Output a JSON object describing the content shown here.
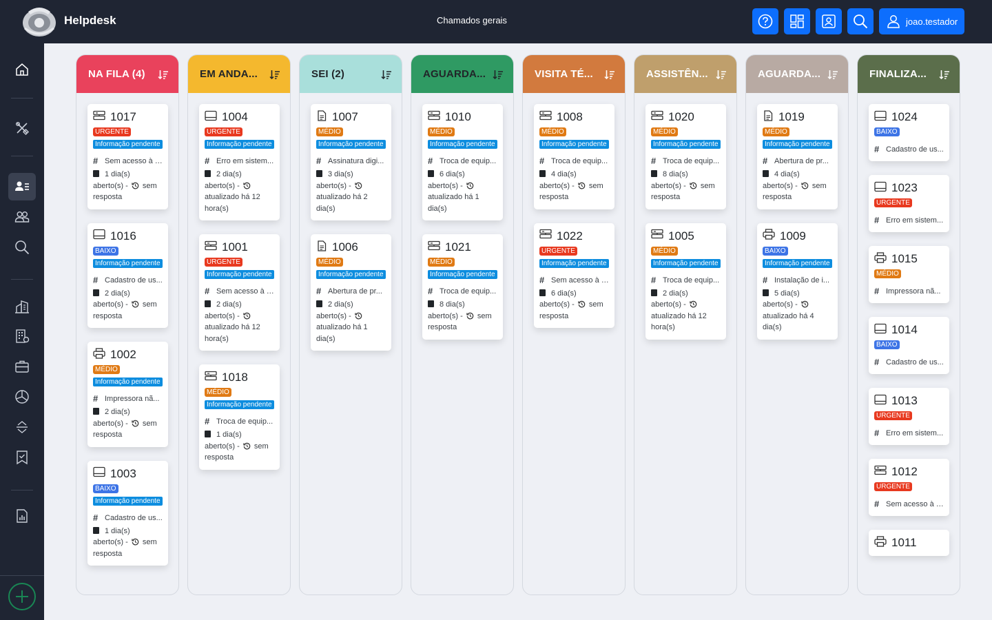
{
  "app": {
    "title": "Helpdesk",
    "page_title": "Chamados gerais",
    "user": "joao.testador"
  },
  "sidebar": {
    "items": [
      "home",
      "tools",
      "users-card",
      "people",
      "search",
      "building",
      "building-grid",
      "briefcase",
      "pie",
      "expand",
      "checklist",
      "report"
    ],
    "add_label": "+"
  },
  "columns": [
    {
      "title": "NA FILA (4)",
      "color": "#e9425c",
      "text_color": "#ffffff",
      "cards": [
        {
          "id": "1017",
          "icon": "server",
          "priority": "URGENTE",
          "status": "Informação pendente",
          "subject": "Sem acesso à r...",
          "l1": "1 dia(s)",
          "l2": "aberto(s) -",
          "l3": "sem",
          "l4": "resposta"
        },
        {
          "id": "1016",
          "icon": "monitor",
          "priority": "BAIXO",
          "status": "Informação pendente",
          "subject": "Cadastro de us...",
          "l1": "2 dia(s)",
          "l2": "aberto(s) -",
          "l3": "sem",
          "l4": "resposta"
        },
        {
          "id": "1002",
          "icon": "printer",
          "priority": "MÉDIO",
          "status": "Informação pendente",
          "subject": "Impressora nã...",
          "l1": "2 dia(s)",
          "l2": "aberto(s) -",
          "l3": "sem",
          "l4": "resposta"
        },
        {
          "id": "1003",
          "icon": "monitor",
          "priority": "BAIXO",
          "status": "Informação pendente",
          "subject": "Cadastro de us...",
          "l1": "1 dia(s)",
          "l2": "aberto(s) -",
          "l3": "sem",
          "l4": "resposta"
        }
      ]
    },
    {
      "title": "EM ANDA...",
      "color": "#f4b82e",
      "text_color": "#212529",
      "cards": [
        {
          "id": "1004",
          "icon": "monitor",
          "priority": "URGENTE",
          "status": "Informação pendente",
          "subject": "Erro em sistem...",
          "l1": "2 dia(s)",
          "l2": "aberto(s) -",
          "l3": "",
          "l4": "atualizado há 12",
          "l5": "hora(s)"
        },
        {
          "id": "1001",
          "icon": "server",
          "priority": "URGENTE",
          "status": "Informação pendente",
          "subject": "Sem acesso à r...",
          "l1": "2 dia(s)",
          "l2": "aberto(s) -",
          "l3": "",
          "l4": "atualizado há 12",
          "l5": "hora(s)"
        },
        {
          "id": "1018",
          "icon": "server",
          "priority": "MÉDIO",
          "status": "Informação pendente",
          "subject": "Troca de equip...",
          "l1": "1 dia(s)",
          "l2": "aberto(s) -",
          "l3": "sem",
          "l4": "resposta"
        }
      ]
    },
    {
      "title": "SEI (2)",
      "color": "#a9dfdb",
      "text_color": "#212529",
      "cards": [
        {
          "id": "1007",
          "icon": "document",
          "priority": "MÉDIO",
          "status": "Informação pendente",
          "subject": "Assinatura digi...",
          "l1": "3 dia(s)",
          "l2": "aberto(s) -",
          "l3": "",
          "l4": "atualizado há 2",
          "l5": "dia(s)"
        },
        {
          "id": "1006",
          "icon": "document",
          "priority": "MÉDIO",
          "status": "Informação pendente",
          "subject": "Abertura de pr...",
          "l1": "2 dia(s)",
          "l2": "aberto(s) -",
          "l3": "",
          "l4": "atualizado há 1",
          "l5": "dia(s)"
        }
      ]
    },
    {
      "title": "AGUARDA...",
      "color": "#2f9a63",
      "text_color": "#212529",
      "cards": [
        {
          "id": "1010",
          "icon": "server",
          "priority": "MÉDIO",
          "status": "Informação pendente",
          "subject": "Troca de equip...",
          "l1": "6 dia(s)",
          "l2": "aberto(s) -",
          "l3": "",
          "l4": "atualizado há 1",
          "l5": "dia(s)"
        },
        {
          "id": "1021",
          "icon": "server",
          "priority": "MÉDIO",
          "status": "Informação pendente",
          "subject": "Troca de equip...",
          "l1": "8 dia(s)",
          "l2": "aberto(s) -",
          "l3": "sem",
          "l4": "resposta"
        }
      ]
    },
    {
      "title": "VISITA TÉ...",
      "color": "#d27a3e",
      "text_color": "#ffffff",
      "cards": [
        {
          "id": "1008",
          "icon": "server",
          "priority": "MÉDIO",
          "status": "Informação pendente",
          "subject": "Troca de equip...",
          "l1": "4 dia(s)",
          "l2": "aberto(s) -",
          "l3": "sem",
          "l4": "resposta"
        },
        {
          "id": "1022",
          "icon": "server",
          "priority": "URGENTE",
          "status": "Informação pendente",
          "subject": "Sem acesso à r...",
          "l1": "6 dia(s)",
          "l2": "aberto(s) -",
          "l3": "sem",
          "l4": "resposta"
        }
      ]
    },
    {
      "title": "ASSISTÊN...",
      "color": "#bf9f6c",
      "text_color": "#ffffff",
      "cards": [
        {
          "id": "1020",
          "icon": "server",
          "priority": "MÉDIO",
          "status": "Informação pendente",
          "subject": "Troca de equip...",
          "l1": "8 dia(s)",
          "l2": "aberto(s) -",
          "l3": "sem",
          "l4": "resposta"
        },
        {
          "id": "1005",
          "icon": "server",
          "priority": "MÉDIO",
          "status": "Informação pendente",
          "subject": "Troca de equip...",
          "l1": "2 dia(s)",
          "l2": "aberto(s) -",
          "l3": "",
          "l4": "atualizado há 12",
          "l5": "hora(s)"
        }
      ]
    },
    {
      "title": "AGUARDA...",
      "color": "#b8aaa3",
      "text_color": "#ffffff",
      "cards": [
        {
          "id": "1019",
          "icon": "document",
          "priority": "MÉDIO",
          "status": "Informação pendente",
          "subject": "Abertura de pr...",
          "l1": "4 dia(s)",
          "l2": "aberto(s) -",
          "l3": "sem",
          "l4": "resposta"
        },
        {
          "id": "1009",
          "icon": "printer",
          "priority": "BAIXO",
          "status": "Informação pendente",
          "subject": "Instalação de i...",
          "l1": "5 dia(s)",
          "l2": "aberto(s) -",
          "l3": "",
          "l4": "atualizado há 4",
          "l5": "dia(s)"
        }
      ]
    },
    {
      "title": "FINALIZA...",
      "color": "#5b6e4b",
      "text_color": "#ffffff",
      "cards": [
        {
          "id": "1024",
          "icon": "monitor",
          "priority": "BAIXO",
          "subject": "Cadastro de us..."
        },
        {
          "id": "1023",
          "icon": "monitor",
          "priority": "URGENTE",
          "subject": "Erro em sistem..."
        },
        {
          "id": "1015",
          "icon": "printer",
          "priority": "MÉDIO",
          "subject": "Impressora nã..."
        },
        {
          "id": "1014",
          "icon": "monitor",
          "priority": "BAIXO",
          "subject": "Cadastro de us..."
        },
        {
          "id": "1013",
          "icon": "monitor",
          "priority": "URGENTE",
          "subject": "Erro em sistem..."
        },
        {
          "id": "1012",
          "icon": "server",
          "priority": "URGENTE",
          "subject": "Sem acesso à r..."
        },
        {
          "id": "1011",
          "icon": "printer",
          "priority": "",
          "subject": ""
        }
      ]
    }
  ],
  "colors": {
    "URGENTE": "#e8391f",
    "MÉDIO": "#e07a14",
    "BAIXO": "#3d74e6"
  }
}
